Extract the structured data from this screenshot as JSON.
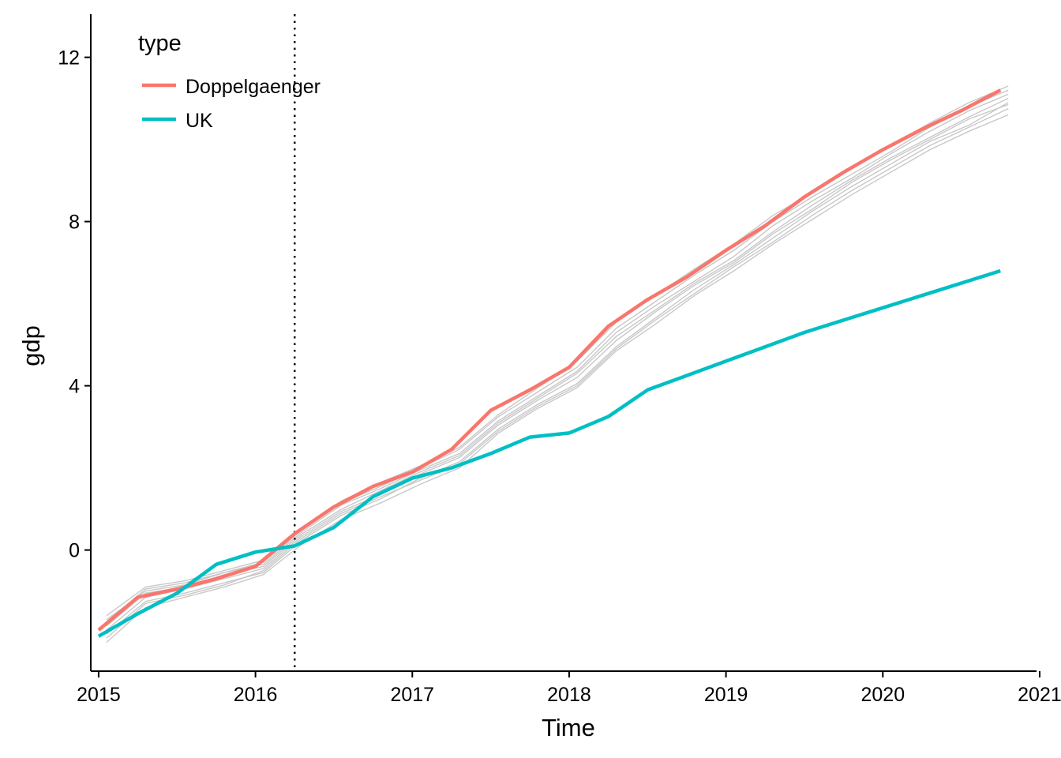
{
  "chart_data": {
    "type": "line",
    "xlabel": "Time",
    "ylabel": "gdp",
    "xlim": [
      2014.95,
      2020.98
    ],
    "ylim": [
      -2.95,
      13.05
    ],
    "x_ticks": [
      2015,
      2016,
      2017,
      2018,
      2019,
      2020,
      2021
    ],
    "y_ticks": [
      0,
      4,
      8,
      12
    ],
    "grid": false,
    "legend": {
      "title": "type",
      "placement": "top-left inside"
    },
    "vline": {
      "x": 2016.25,
      "style": "dotted",
      "color": "#000000"
    },
    "x": [
      2015,
      2015.25,
      2015.5,
      2015.75,
      2016,
      2016.25,
      2016.5,
      2016.75,
      2017,
      2017.25,
      2017.5,
      2017.75,
      2018,
      2018.25,
      2018.5,
      2018.75,
      2019,
      2019.25,
      2019.5,
      2019.75,
      2020,
      2020.25,
      2020.5,
      2020.75
    ],
    "series": [
      {
        "name": "Doppelgaenger",
        "color": "#F8766D",
        "values": [
          -1.95,
          -1.15,
          -0.95,
          -0.7,
          -0.4,
          0.4,
          1.05,
          1.55,
          1.9,
          2.45,
          3.4,
          3.9,
          4.45,
          5.45,
          6.1,
          6.65,
          7.3,
          7.9,
          8.6,
          9.2,
          9.75,
          10.25,
          10.7,
          11.2
        ]
      },
      {
        "name": "UK",
        "color": "#00BFC4",
        "values": [
          -2.1,
          -1.55,
          -1.05,
          -0.35,
          -0.05,
          0.1,
          0.55,
          1.3,
          1.75,
          2.0,
          2.35,
          2.75,
          2.85,
          3.25,
          3.9,
          4.25,
          4.6,
          4.95,
          5.3,
          5.6,
          5.9,
          6.2,
          6.5,
          6.8
        ]
      }
    ],
    "background_series": {
      "color": "#c8c8c8",
      "x": [
        2015.05,
        2015.3,
        2015.55,
        2015.8,
        2016.05,
        2016.3,
        2016.55,
        2016.8,
        2017.05,
        2017.3,
        2017.55,
        2017.8,
        2018.05,
        2018.3,
        2018.55,
        2018.8,
        2019.05,
        2019.3,
        2019.55,
        2019.8,
        2020.05,
        2020.3,
        2020.55,
        2020.8
      ],
      "lines": [
        [
          -1.75,
          -0.95,
          -0.8,
          -0.55,
          -0.35,
          0.45,
          1.1,
          1.5,
          1.95,
          2.35,
          3.15,
          3.75,
          4.35,
          5.3,
          5.95,
          6.55,
          7.15,
          7.9,
          8.5,
          9.05,
          9.65,
          10.2,
          10.7,
          11.1
        ],
        [
          -2.05,
          -1.25,
          -1.05,
          -0.8,
          -0.55,
          0.25,
          0.85,
          1.25,
          1.75,
          2.15,
          2.95,
          3.55,
          4.05,
          4.95,
          5.65,
          6.35,
          6.95,
          7.6,
          8.25,
          8.85,
          9.4,
          9.95,
          10.35,
          10.9
        ],
        [
          -1.6,
          -0.9,
          -0.75,
          -0.5,
          -0.25,
          0.55,
          1.2,
          1.65,
          2.05,
          2.5,
          3.3,
          3.95,
          4.6,
          5.55,
          6.2,
          6.85,
          7.45,
          8.15,
          8.7,
          9.3,
          9.85,
          10.4,
          10.9,
          11.3
        ],
        [
          -2.25,
          -1.4,
          -1.15,
          -0.9,
          -0.6,
          0.15,
          0.75,
          1.15,
          1.6,
          2.0,
          2.85,
          3.45,
          3.95,
          4.85,
          5.5,
          6.2,
          6.8,
          7.45,
          8.05,
          8.65,
          9.2,
          9.75,
          10.2,
          10.6
        ],
        [
          -1.85,
          -1.05,
          -0.9,
          -0.6,
          -0.4,
          0.4,
          1.0,
          1.45,
          1.9,
          2.3,
          3.1,
          3.7,
          4.3,
          5.2,
          5.85,
          6.5,
          7.05,
          7.75,
          8.4,
          9.0,
          9.55,
          10.05,
          10.55,
          11.0
        ],
        [
          -1.95,
          -1.15,
          -0.95,
          -0.7,
          -0.45,
          0.35,
          0.95,
          1.35,
          1.85,
          2.25,
          3.05,
          3.65,
          4.2,
          5.1,
          5.8,
          6.45,
          7.0,
          7.7,
          8.3,
          8.95,
          9.5,
          10.0,
          10.5,
          10.85
        ],
        [
          -1.7,
          -1.0,
          -0.85,
          -0.55,
          -0.3,
          0.5,
          1.15,
          1.55,
          2.0,
          2.45,
          3.25,
          3.85,
          4.45,
          5.4,
          6.05,
          6.7,
          7.3,
          8.0,
          8.6,
          9.15,
          9.7,
          10.3,
          10.8,
          11.2
        ],
        [
          -2.15,
          -1.3,
          -1.1,
          -0.85,
          -0.5,
          0.3,
          0.9,
          1.3,
          1.7,
          2.1,
          2.9,
          3.5,
          4.0,
          4.9,
          5.6,
          6.25,
          6.9,
          7.5,
          8.15,
          8.75,
          9.3,
          9.85,
          10.3,
          10.75
        ]
      ]
    }
  }
}
